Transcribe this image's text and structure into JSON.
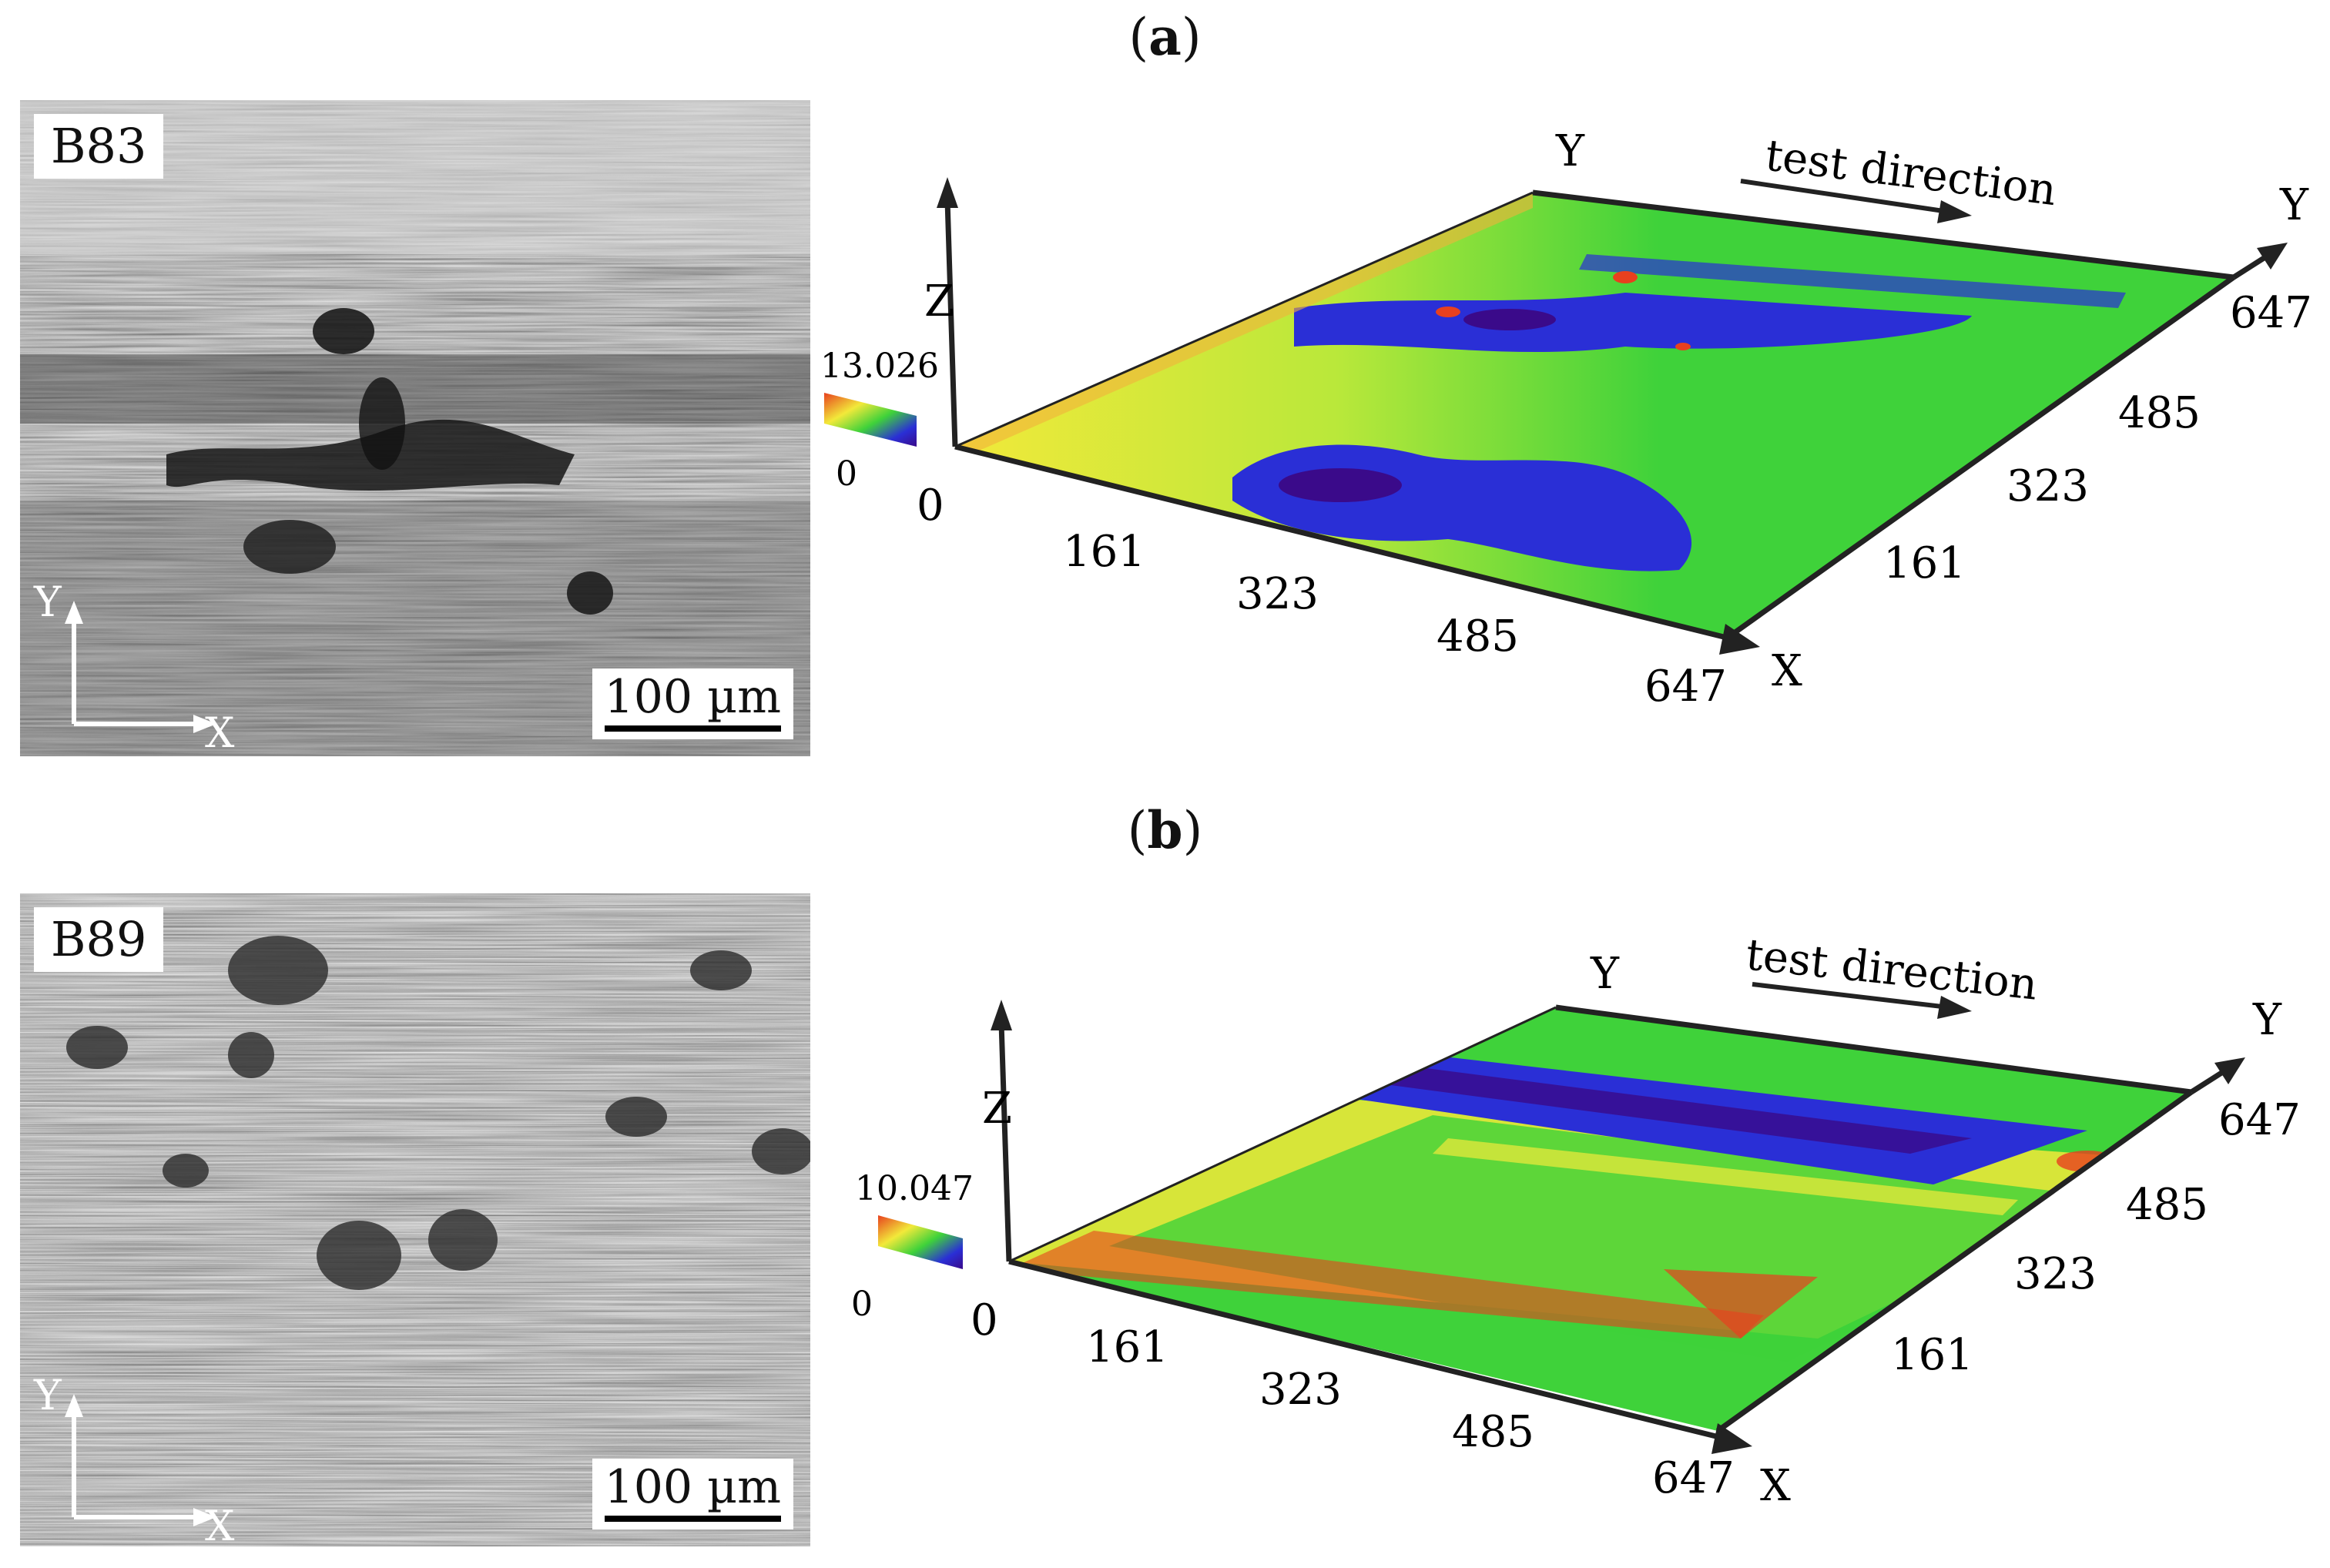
{
  "panels": [
    {
      "label": "a",
      "sample": "B83",
      "scale_bar": "100 µm",
      "micro_axes": {
        "y": "Y",
        "x": "X"
      },
      "plot": {
        "z_axis": "Z",
        "z_max": "13.026",
        "z_min": "0",
        "origin": "0",
        "x_axis": "X",
        "y_axis": "Y",
        "x_ticks": [
          "161",
          "323",
          "485",
          "647"
        ],
        "y_ticks": [
          "161",
          "323",
          "485",
          "647"
        ],
        "test_direction": "test direction"
      }
    },
    {
      "label": "b",
      "sample": "B89",
      "scale_bar": "100 µm",
      "micro_axes": {
        "y": "Y",
        "x": "X"
      },
      "plot": {
        "z_axis": "Z",
        "z_max": "10.047",
        "z_min": "0",
        "origin": "0",
        "x_axis": "X",
        "y_axis": "Y",
        "x_ticks": [
          "161",
          "323",
          "485",
          "647"
        ],
        "y_ticks": [
          "161",
          "323",
          "485",
          "647"
        ],
        "test_direction": "test direction"
      }
    }
  ],
  "colors": {
    "surface_base": "#3fd23a",
    "surface_high": "#f2e93a",
    "surface_peak": "#e8401e",
    "surface_low": "#2a2fd6",
    "surface_deep": "#3a0a8a",
    "axis": "#222222"
  }
}
